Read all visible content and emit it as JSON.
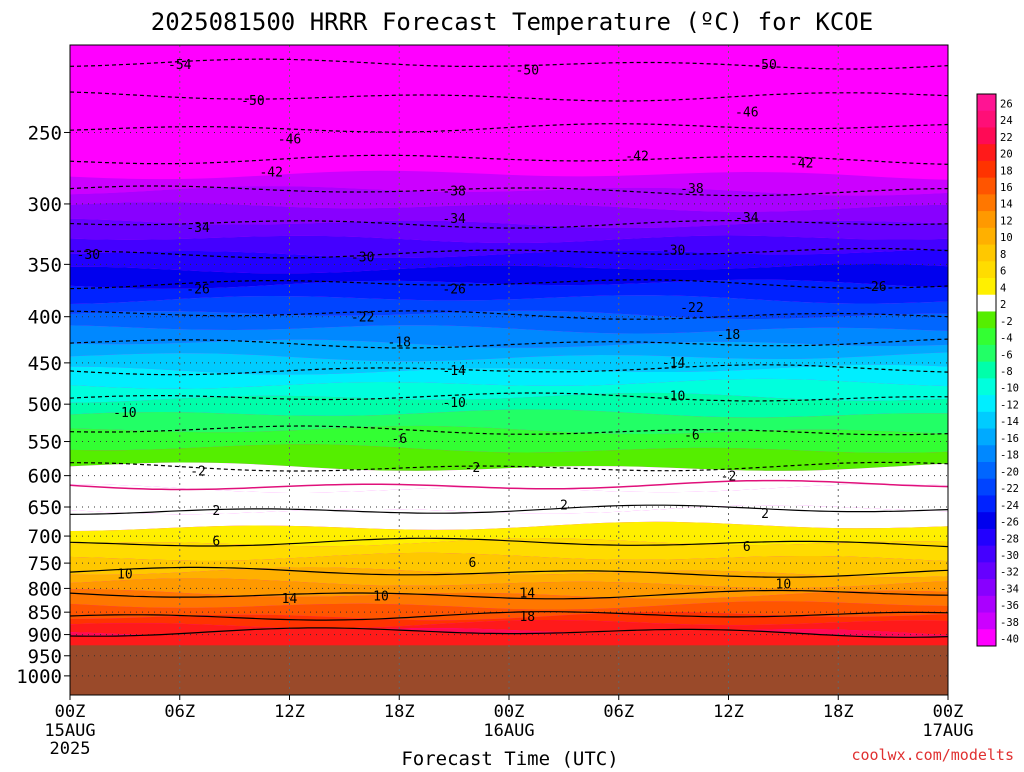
{
  "chart_data": {
    "type": "heatmap",
    "title": "2025081500 HRRR Forecast Temperature (ºC) for KCOE",
    "xlabel": "Forecast Time (UTC)",
    "credit": "coolwx.com/modelts",
    "x_ticks": [
      {
        "label": "00Z",
        "sub1": "15AUG",
        "sub2": "2025",
        "hour": 0
      },
      {
        "label": "06Z",
        "sub1": "",
        "sub2": "",
        "hour": 6
      },
      {
        "label": "12Z",
        "sub1": "",
        "sub2": "",
        "hour": 12
      },
      {
        "label": "18Z",
        "sub1": "",
        "sub2": "",
        "hour": 18
      },
      {
        "label": "00Z",
        "sub1": "16AUG",
        "sub2": "",
        "hour": 24
      },
      {
        "label": "06Z",
        "sub1": "",
        "sub2": "",
        "hour": 30
      },
      {
        "label": "12Z",
        "sub1": "",
        "sub2": "",
        "hour": 36
      },
      {
        "label": "18Z",
        "sub1": "",
        "sub2": "",
        "hour": 42
      },
      {
        "label": "00Z",
        "sub1": "17AUG",
        "sub2": "",
        "hour": 48
      }
    ],
    "xlim": [
      0,
      48
    ],
    "y_axis": "pressure (hPa), log scale, reversed",
    "y_ticks": [
      250,
      300,
      350,
      400,
      450,
      500,
      550,
      600,
      650,
      700,
      750,
      800,
      850,
      900,
      950,
      1000
    ],
    "ylim": [
      1050,
      200
    ],
    "ground_level_hpa": 925,
    "grid": true,
    "colorbar_labels": [
      "26",
      "24",
      "22",
      "20",
      "18",
      "16",
      "14",
      "12",
      "10",
      "8",
      "6",
      "4",
      "2",
      "-2",
      "-4",
      "-6",
      "-8",
      "-10",
      "-12",
      "-14",
      "-16",
      "-18",
      "-20",
      "-22",
      "-24",
      "-26",
      "-28",
      "-30",
      "-32",
      "-34",
      "-36",
      "-38",
      "-40"
    ],
    "colorbar_colors": [
      "#ff1493",
      "#ff0f77",
      "#ff0a55",
      "#ff1a1a",
      "#ff3300",
      "#ff5500",
      "#ff7700",
      "#ff9900",
      "#ffb000",
      "#ffc800",
      "#ffdc00",
      "#fff000",
      "#ffffff",
      "#55ee00",
      "#33ff33",
      "#22ff66",
      "#00ffaa",
      "#00ffdd",
      "#00eeff",
      "#00ccff",
      "#00aaff",
      "#0088ff",
      "#0066ff",
      "#0044ff",
      "#0022ff",
      "#0000ee",
      "#2200ff",
      "#4400ff",
      "#6600ff",
      "#8800ff",
      "#aa00ff",
      "#cc00ff",
      "#ff00ff"
    ],
    "ground_color": "#9a4a2a",
    "isotherm_levels_hpa": {
      "-54": 210,
      "-50": 228,
      "-46": 247,
      "-42": 268,
      "-38": 290,
      "-34": 315,
      "-30": 340,
      "-26": 368,
      "-22": 398,
      "-18": 428,
      "-14": 458,
      "-10": 492,
      "-6": 535,
      "-2": 587,
      "2": 655,
      "6": 713,
      "10": 768,
      "14": 812,
      "18": 858,
      "22": 895
    },
    "contour_labels": [
      {
        "text": "-54",
        "hour": 6,
        "hpa": 210
      },
      {
        "text": "-50",
        "hour": 10,
        "hpa": 230
      },
      {
        "text": "-46",
        "hour": 12,
        "hpa": 254
      },
      {
        "text": "-42",
        "hour": 11,
        "hpa": 276
      },
      {
        "text": "-38",
        "hour": 21,
        "hpa": 290
      },
      {
        "text": "-34",
        "hour": 7,
        "hpa": 318
      },
      {
        "text": "-34",
        "hour": 21,
        "hpa": 311
      },
      {
        "text": "-30",
        "hour": 1,
        "hpa": 341
      },
      {
        "text": "-30",
        "hour": 16,
        "hpa": 343
      },
      {
        "text": "-26",
        "hour": 7,
        "hpa": 372
      },
      {
        "text": "-26",
        "hour": 21,
        "hpa": 372
      },
      {
        "text": "-22",
        "hour": 16,
        "hpa": 400
      },
      {
        "text": "-18",
        "hour": 18,
        "hpa": 426
      },
      {
        "text": "-14",
        "hour": 21,
        "hpa": 458
      },
      {
        "text": "-10",
        "hour": 3,
        "hpa": 510
      },
      {
        "text": "-10",
        "hour": 21,
        "hpa": 497
      },
      {
        "text": "-6",
        "hour": 18,
        "hpa": 545
      },
      {
        "text": "-2",
        "hour": 7,
        "hpa": 592
      },
      {
        "text": "-2",
        "hour": 22,
        "hpa": 587
      },
      {
        "text": "2",
        "hour": 8,
        "hpa": 655
      },
      {
        "text": "2",
        "hour": 27,
        "hpa": 646
      },
      {
        "text": "6",
        "hour": 8,
        "hpa": 708
      },
      {
        "text": "6",
        "hour": 22,
        "hpa": 748
      },
      {
        "text": "10",
        "hour": 3,
        "hpa": 770
      },
      {
        "text": "10",
        "hour": 17,
        "hpa": 815
      },
      {
        "text": "14",
        "hour": 12,
        "hpa": 820
      },
      {
        "text": "14",
        "hour": 25,
        "hpa": 808
      },
      {
        "text": "18",
        "hour": 25,
        "hpa": 858
      },
      {
        "text": "-50",
        "hour": 25,
        "hpa": 213
      },
      {
        "text": "-42",
        "hour": 31,
        "hpa": 265
      },
      {
        "text": "-30",
        "hour": 33,
        "hpa": 337
      },
      {
        "text": "-26",
        "hour": 44,
        "hpa": 370
      },
      {
        "text": "-22",
        "hour": 34,
        "hpa": 390
      },
      {
        "text": "-18",
        "hour": 36,
        "hpa": 418
      },
      {
        "text": "-14",
        "hour": 33,
        "hpa": 449
      },
      {
        "text": "-10",
        "hour": 33,
        "hpa": 489
      },
      {
        "text": "-6",
        "hour": 34,
        "hpa": 540
      },
      {
        "text": "-2",
        "hour": 36,
        "hpa": 600
      },
      {
        "text": "2",
        "hour": 38,
        "hpa": 660
      },
      {
        "text": "6",
        "hour": 37,
        "hpa": 718
      },
      {
        "text": "10",
        "hour": 39,
        "hpa": 790
      },
      {
        "text": "-38",
        "hour": 34,
        "hpa": 288
      },
      {
        "text": "-34",
        "hour": 37,
        "hpa": 310
      },
      {
        "text": "-42",
        "hour": 40,
        "hpa": 270
      },
      {
        "text": "-46",
        "hour": 37,
        "hpa": 237
      },
      {
        "text": "-50",
        "hour": 38,
        "hpa": 210
      }
    ]
  }
}
